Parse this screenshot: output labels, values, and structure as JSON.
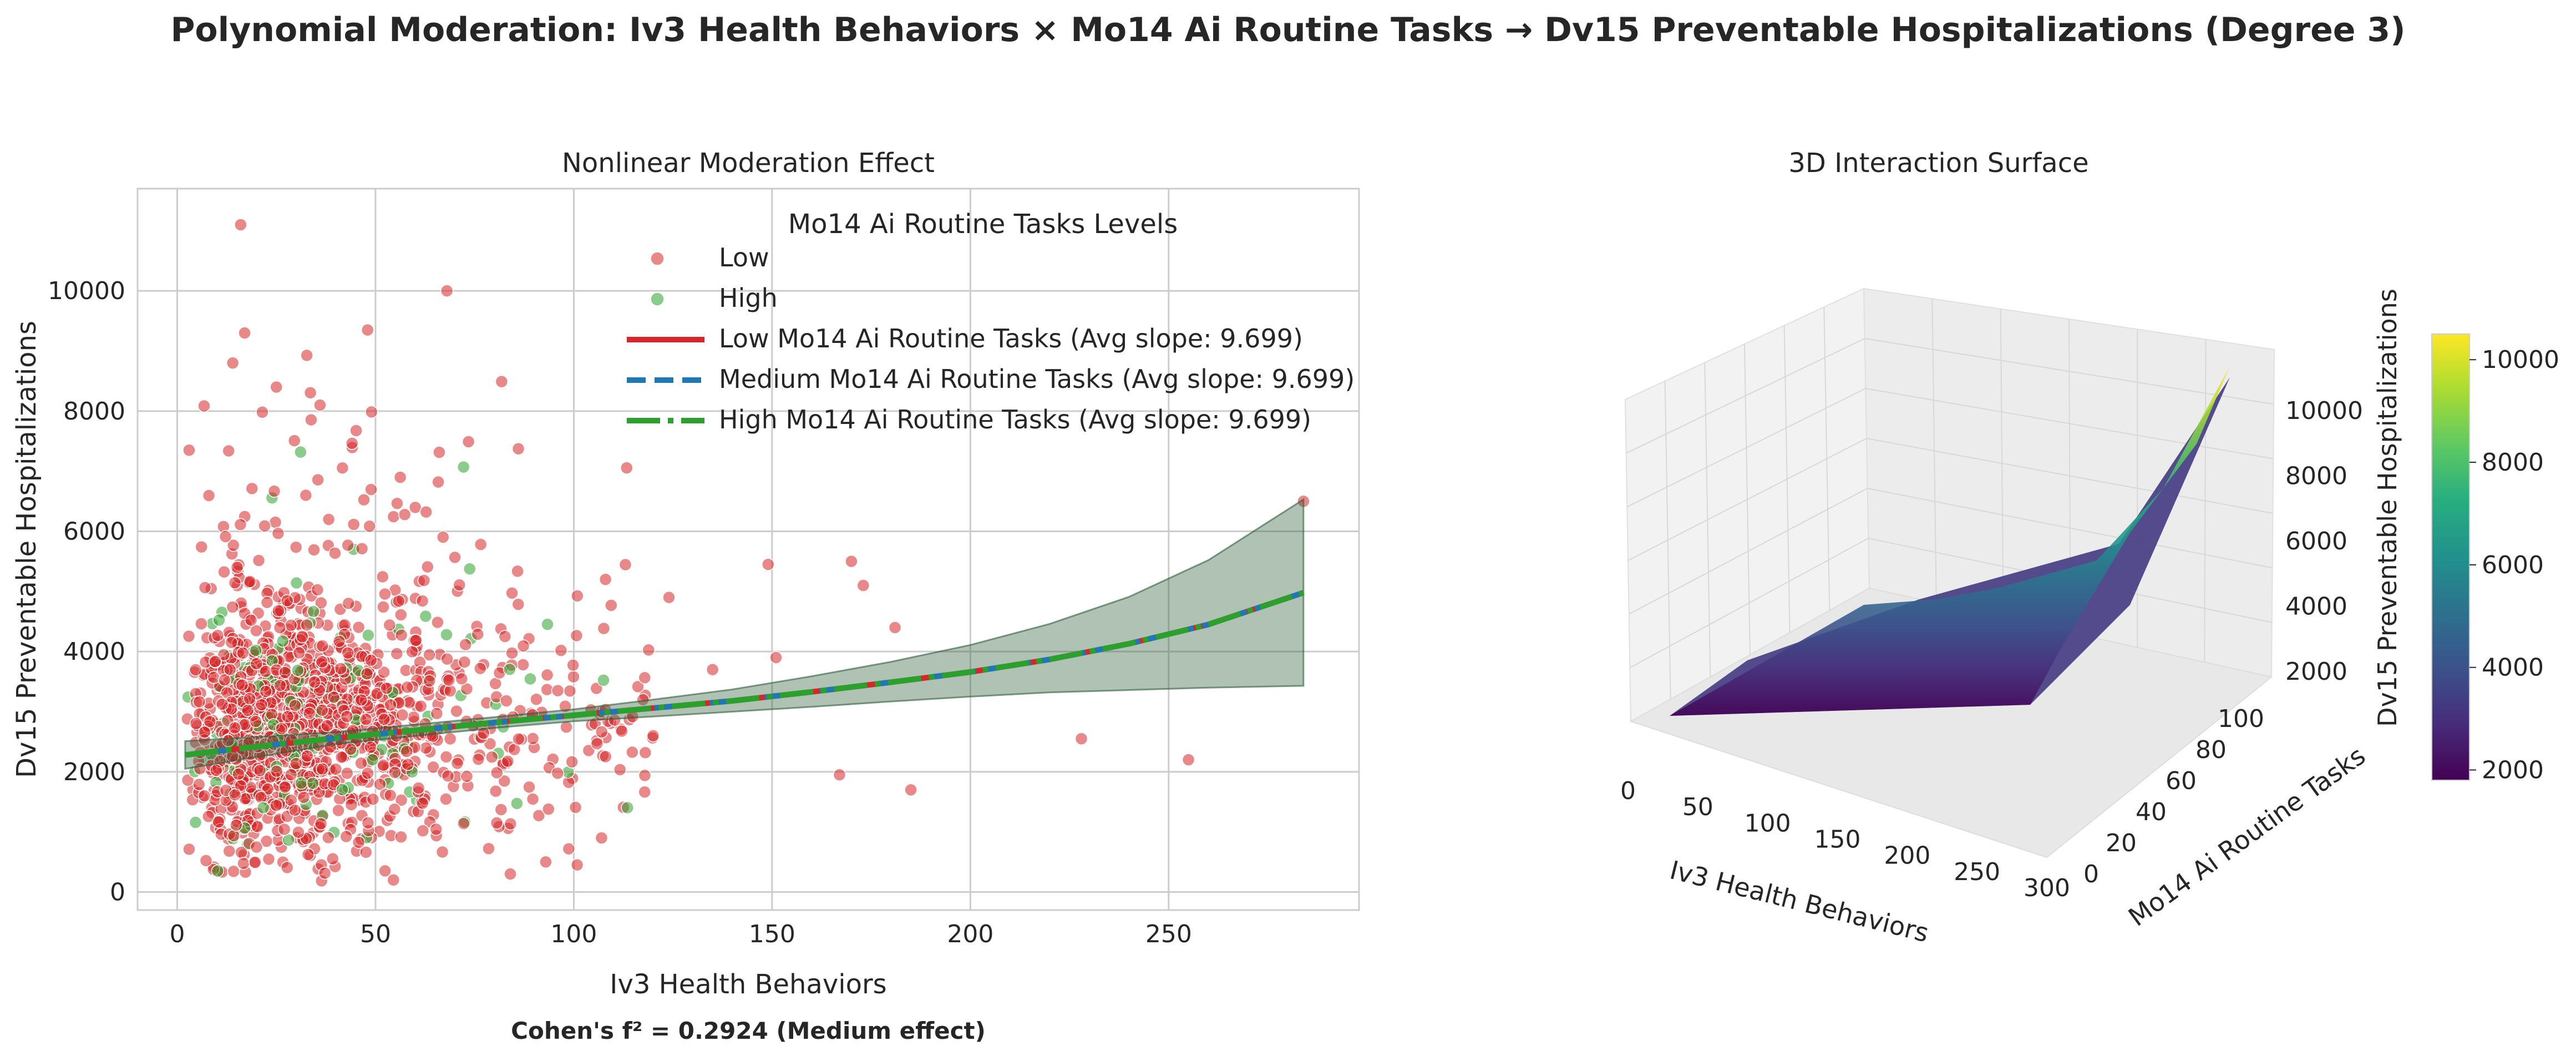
{
  "figure": {
    "title": "Polynomial Moderation: Iv3 Health Behaviors × Mo14 Ai Routine Tasks → Dv15 Preventable Hospitalizations (Degree 3)",
    "footnote": "Cohen's f² = 0.2924 (Medium effect)"
  },
  "colors": {
    "low": "#d62728",
    "medium": "#1f77b4",
    "high": "#2ca02c",
    "ci_band": "#2f5e3a",
    "grid": "#cccccc",
    "axes_edge": "#cccccc"
  },
  "chart_data": [
    {
      "type": "scatter",
      "title": "Nonlinear Moderation Effect",
      "xlabel": "Iv3 Health Behaviors",
      "ylabel": "Dv15 Preventable Hospitalizations",
      "xlim": [
        -10,
        298
      ],
      "ylim": [
        -300,
        11700
      ],
      "xticks": [
        0,
        50,
        100,
        150,
        200,
        250
      ],
      "yticks": [
        0,
        2000,
        4000,
        6000,
        8000,
        10000
      ],
      "grid": true,
      "legend": {
        "title": "Mo14 Ai Routine Tasks Levels",
        "placement": "top-right",
        "entries": [
          {
            "label": "Low",
            "kind": "marker",
            "color": "#d62728"
          },
          {
            "label": "High",
            "kind": "marker",
            "color": "#2ca02c"
          },
          {
            "label": "Low Mo14 Ai Routine Tasks (Avg slope: 9.699)",
            "kind": "solid",
            "color": "#d62728"
          },
          {
            "label": "Medium Mo14 Ai Routine Tasks (Avg slope: 9.699)",
            "kind": "dashed",
            "color": "#1f77b4"
          },
          {
            "label": "High Mo14 Ai Routine Tasks (Avg slope: 9.699)",
            "kind": "dashdot",
            "color": "#2ca02c"
          }
        ]
      },
      "outliers": [
        {
          "x": 16,
          "y": 11100
        },
        {
          "x": 68,
          "y": 10000
        },
        {
          "x": 48,
          "y": 9350
        },
        {
          "x": 17,
          "y": 9300
        },
        {
          "x": 14,
          "y": 8800
        },
        {
          "x": 3,
          "y": 7350
        },
        {
          "x": 36,
          "y": 8100
        },
        {
          "x": 25,
          "y": 8400
        },
        {
          "x": 284,
          "y": 6500
        },
        {
          "x": 228,
          "y": 2550
        },
        {
          "x": 255,
          "y": 2200
        },
        {
          "x": 185,
          "y": 1700
        },
        {
          "x": 167,
          "y": 1950
        },
        {
          "x": 181,
          "y": 4400
        },
        {
          "x": 170,
          "y": 5500
        },
        {
          "x": 173,
          "y": 5100
        },
        {
          "x": 149,
          "y": 5450
        },
        {
          "x": 151,
          "y": 3900
        },
        {
          "x": 135,
          "y": 3700
        },
        {
          "x": 107,
          "y": 900
        },
        {
          "x": 84,
          "y": 300
        },
        {
          "x": 108,
          "y": 5200
        },
        {
          "x": 124,
          "y": 4900
        },
        {
          "x": 120,
          "y": 2600
        }
      ],
      "fitted_curve": {
        "x": [
          2,
          20,
          40,
          60,
          80,
          100,
          120,
          140,
          160,
          180,
          200,
          220,
          240,
          260,
          284
        ],
        "y": [
          2280,
          2420,
          2560,
          2690,
          2820,
          2940,
          3060,
          3180,
          3330,
          3490,
          3660,
          3870,
          4130,
          4450,
          4980
        ]
      },
      "ci_band": {
        "x": [
          2,
          40,
          80,
          100,
          120,
          140,
          160,
          180,
          200,
          220,
          240,
          260,
          284
        ],
        "lower": [
          2050,
          2460,
          2730,
          2840,
          2920,
          3000,
          3080,
          3170,
          3250,
          3320,
          3360,
          3400,
          3430
        ],
        "upper": [
          2510,
          2660,
          2910,
          3040,
          3200,
          3370,
          3590,
          3830,
          4110,
          4460,
          4910,
          5520,
          6530
        ]
      }
    },
    {
      "type": "surface",
      "title": "3D Interaction Surface",
      "xlabel": "Iv3 Health Behaviors",
      "ylabel": "Mo14 Ai Routine Tasks",
      "zlabel": "Dv15 Preventable Hospitalizations",
      "xticks": [
        0,
        50,
        100,
        150,
        200,
        250,
        300
      ],
      "yticks": [
        0,
        20,
        40,
        60,
        80,
        100
      ],
      "zticks": [
        2000,
        4000,
        6000,
        8000,
        10000
      ],
      "colorbar": {
        "label": "Dv15 Preventable Hospitalizations",
        "colormap": "viridis",
        "range": [
          1800,
          10500
        ],
        "ticks": [
          2000,
          4000,
          6000,
          8000,
          10000
        ]
      }
    }
  ]
}
